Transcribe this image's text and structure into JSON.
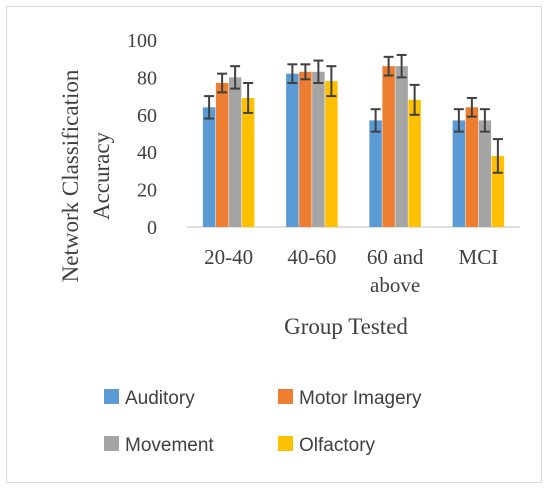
{
  "chart_data": {
    "type": "bar",
    "title": "",
    "xlabel": "Group Tested",
    "ylabel_lines": [
      "Network Classification",
      "Accuracy"
    ],
    "ylim": [
      0,
      100
    ],
    "yticks": [
      0,
      20,
      40,
      60,
      80,
      100
    ],
    "categories": [
      [
        "20-40"
      ],
      [
        "40-60"
      ],
      [
        "60 and",
        "above"
      ],
      [
        "MCI"
      ]
    ],
    "grid": false,
    "legend_position": "bottom",
    "series": [
      {
        "name": "Auditory",
        "color": "#5b9bd5",
        "values": [
          64,
          82,
          57,
          57
        ],
        "errors": [
          6,
          5,
          6,
          6
        ]
      },
      {
        "name": "Motor Imagery",
        "color": "#ed7d31",
        "values": [
          77,
          83,
          86,
          64
        ],
        "errors": [
          5,
          4,
          5,
          5
        ]
      },
      {
        "name": "Movement",
        "color": "#a5a5a5",
        "values": [
          80,
          83,
          86,
          57
        ],
        "errors": [
          6,
          6,
          6,
          6
        ]
      },
      {
        "name": "Olfactory",
        "color": "#ffc000",
        "values": [
          69,
          78,
          68,
          38
        ],
        "errors": [
          8,
          8,
          8,
          9
        ]
      }
    ]
  }
}
